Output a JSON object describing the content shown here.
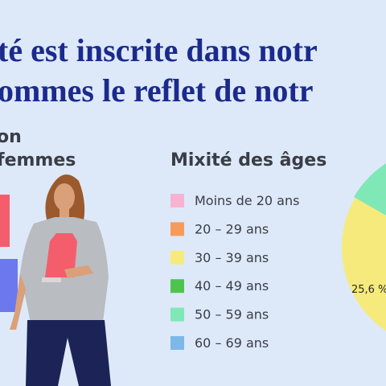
{
  "header": {
    "lines": [
      "té est inscrite dans notr",
      "ommes le reflet de notr"
    ]
  },
  "gender_section": {
    "title_lines": [
      "on",
      "femmes"
    ]
  },
  "age_section": {
    "title": "Mixité des âges",
    "legend": [
      "Moins de 20 ans",
      "20 – 29 ans",
      "30 – 39 ans",
      "40 – 49 ans",
      "50 – 59 ans",
      "60 – 69 ans"
    ],
    "pie_label": "25,6 %"
  }
}
